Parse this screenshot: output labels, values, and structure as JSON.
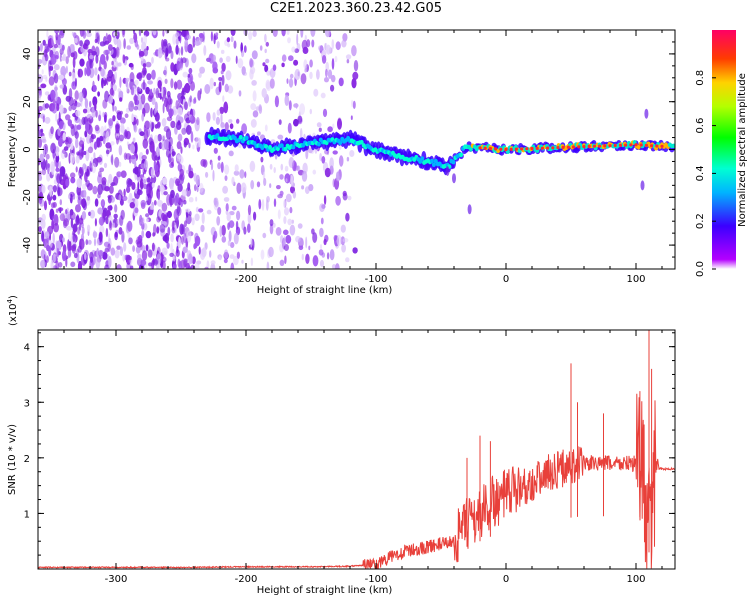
{
  "title": "C2E1.2023.360.23.42.G05",
  "chart_data": [
    {
      "type": "heatmap",
      "title": "C2E1.2023.360.23.42.G05",
      "xlabel": "Height of straight line (km)",
      "ylabel": "Frequency (Hz)",
      "xlim": [
        -360,
        130
      ],
      "ylim": [
        -50,
        50
      ],
      "x_ticks": [
        "-300",
        "-200",
        "-100",
        "0",
        "100"
      ],
      "y_ticks": [
        "40",
        "20",
        "0",
        "-20",
        "-40"
      ],
      "colorbar": {
        "label": "Normalized spectral amplitude",
        "range": [
          0,
          1
        ],
        "ticks": [
          "0.0",
          "0.2",
          "0.4",
          "0.6",
          "0.8"
        ]
      },
      "signal_track": [
        {
          "x": -230,
          "y": 6
        },
        {
          "x": -200,
          "y": 4
        },
        {
          "x": -180,
          "y": 0
        },
        {
          "x": -150,
          "y": 3
        },
        {
          "x": -120,
          "y": 4
        },
        {
          "x": -100,
          "y": 0
        },
        {
          "x": -80,
          "y": -3
        },
        {
          "x": -60,
          "y": -5
        },
        {
          "x": -45,
          "y": -7
        },
        {
          "x": -30,
          "y": 1
        },
        {
          "x": 0,
          "y": 0
        },
        {
          "x": 50,
          "y": 1
        },
        {
          "x": 100,
          "y": 2
        },
        {
          "x": 130,
          "y": 1
        }
      ]
    },
    {
      "type": "line",
      "xlabel": "Height of straight line (km)",
      "ylabel": "SNR (10 * v/v)",
      "y_multiplier": "(x10",
      "y_multiplier_exp": "4",
      "y_multiplier_close": ")",
      "xlim": [
        -360,
        130
      ],
      "ylim": [
        0,
        4.3
      ],
      "x_ticks": [
        "-300",
        "-200",
        "-100",
        "0",
        "100"
      ],
      "y_ticks": [
        "4",
        "3",
        "2",
        "1"
      ],
      "color": "#e8403a",
      "series": [
        {
          "x": [
            -360,
            -300,
            -250,
            -200,
            -150,
            -120,
            -100,
            -90,
            -80,
            -70,
            -60,
            -50,
            -40,
            -30,
            -20,
            -10,
            0,
            10,
            20,
            30,
            40,
            50,
            60,
            70,
            80,
            90,
            100,
            105,
            110,
            115,
            120,
            130
          ],
          "y": [
            0.03,
            0.03,
            0.03,
            0.04,
            0.04,
            0.05,
            0.08,
            0.2,
            0.3,
            0.35,
            0.4,
            0.45,
            0.5,
            0.8,
            1.0,
            1.2,
            1.3,
            1.45,
            1.55,
            1.7,
            1.8,
            1.85,
            1.9,
            1.9,
            1.9,
            1.9,
            1.9,
            1.85,
            0.6,
            1.85,
            1.8,
            1.8
          ]
        }
      ],
      "spikes": [
        {
          "x": -30,
          "y": 2.0
        },
        {
          "x": -20,
          "y": 2.4
        },
        {
          "x": -12,
          "y": 2.3
        },
        {
          "x": 50,
          "y": 3.7
        },
        {
          "x": 55,
          "y": 3.0
        },
        {
          "x": 75,
          "y": 2.8
        },
        {
          "x": 103,
          "y": 3.2
        },
        {
          "x": 110,
          "y": 4.3
        },
        {
          "x": 112,
          "y": 3.6
        }
      ]
    }
  ]
}
